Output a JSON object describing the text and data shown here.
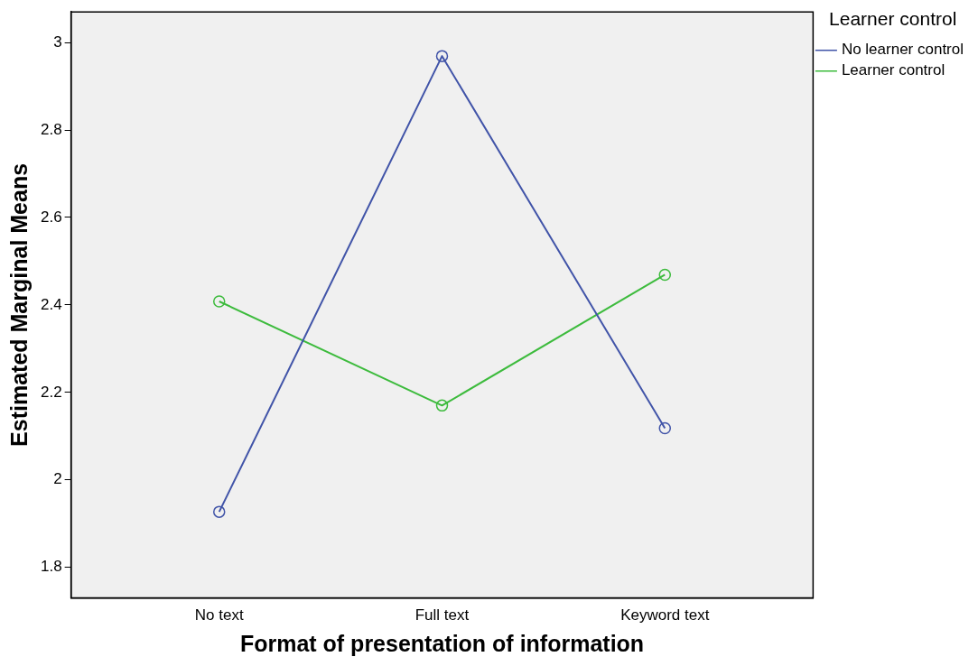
{
  "chart_data": {
    "type": "line",
    "xlabel": "Format of presentation of information",
    "ylabel": "Estimated Marginal Means",
    "legend_title": "Learner control",
    "categories": [
      "No text",
      "Full text",
      "Keyword text"
    ],
    "series": [
      {
        "name": "No learner control",
        "color": "#4154a8",
        "values": [
          1.927,
          2.969,
          2.118
        ]
      },
      {
        "name": "Learner control",
        "color": "#3dbb3d",
        "values": [
          2.408,
          2.17,
          2.469
        ]
      }
    ],
    "ylim": [
      1.73,
      3.07
    ],
    "yticks": [
      1.8,
      2,
      2.2,
      2.4,
      2.6,
      2.8,
      3
    ],
    "grid": false,
    "legend": "top right",
    "marker": "circle",
    "line_style": "solid"
  }
}
